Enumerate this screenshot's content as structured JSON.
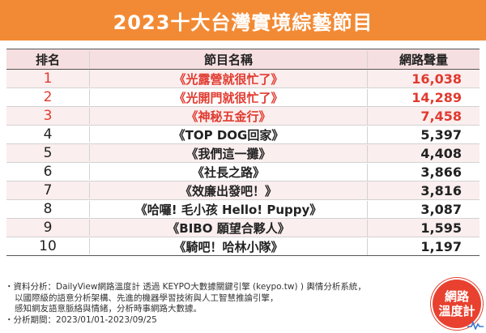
{
  "title": "2023十大台灣實境綜藝節目",
  "colors": {
    "banner": "#f28a35",
    "highlight": "#e13a2f",
    "header_bg": "#f6dfe0",
    "row_shade": "#fbeeee",
    "logo": "#e8412f"
  },
  "columns": {
    "rank": "排名",
    "name": "節目名稱",
    "volume": "網路聲量"
  },
  "rows": [
    {
      "rank": "1",
      "name": "《光露營就很忙了》",
      "volume": "16,038"
    },
    {
      "rank": "2",
      "name": "《光開門就很忙了》",
      "volume": "14,289"
    },
    {
      "rank": "3",
      "name": "《神秘五金行》",
      "volume": "7,458"
    },
    {
      "rank": "4",
      "name": "《TOP DOG回家》",
      "volume": "5,397"
    },
    {
      "rank": "5",
      "name": "《我們這一攤》",
      "volume": "4,408"
    },
    {
      "rank": "6",
      "name": "《社長之路》",
      "volume": "3,866"
    },
    {
      "rank": "7",
      "name": "《效廉出發吧！》",
      "volume": "3,816"
    },
    {
      "rank": "8",
      "name": "《哈囉! 毛小孩 Hello! Puppy》",
      "volume": "3,087"
    },
    {
      "rank": "9",
      "name": "《BIBO 願望合夥人》",
      "volume": "1,595"
    },
    {
      "rank": "10",
      "name": "《騎吧！哈林小隊》",
      "volume": "1,197"
    }
  ],
  "notes": {
    "line1": "・資料分析：DailyView網路溫度計 透過 KEYPO大數據關鍵引擎 (keypo.tw) ) 輿情分析系統，",
    "line2": "以國際級的語意分析架構、先進的機器學習技術與人工智慧推論引擎，",
    "line3": "感知網友語意脈絡與情緒，分析時事網路大數據。",
    "line4": "・分析期間：2023/01/01-2023/09/25"
  },
  "logo": {
    "line1": "網路",
    "line2": "溫度計"
  },
  "chart_data": {
    "type": "table",
    "title": "2023十大台灣實境綜藝節目",
    "columns": [
      "排名",
      "節目名稱",
      "網路聲量"
    ],
    "categories": [
      "《光露營就很忙了》",
      "《光開門就很忙了》",
      "《神秘五金行》",
      "《TOP DOG回家》",
      "《我們這一攤》",
      "《社長之路》",
      "《效廉出發吧！》",
      "《哈囉! 毛小孩 Hello! Puppy》",
      "《BIBO 願望合夥人》",
      "《騎吧！哈林小隊》"
    ],
    "values": [
      16038,
      14289,
      7458,
      5397,
      4408,
      3866,
      3816,
      3087,
      1595,
      1197
    ]
  }
}
